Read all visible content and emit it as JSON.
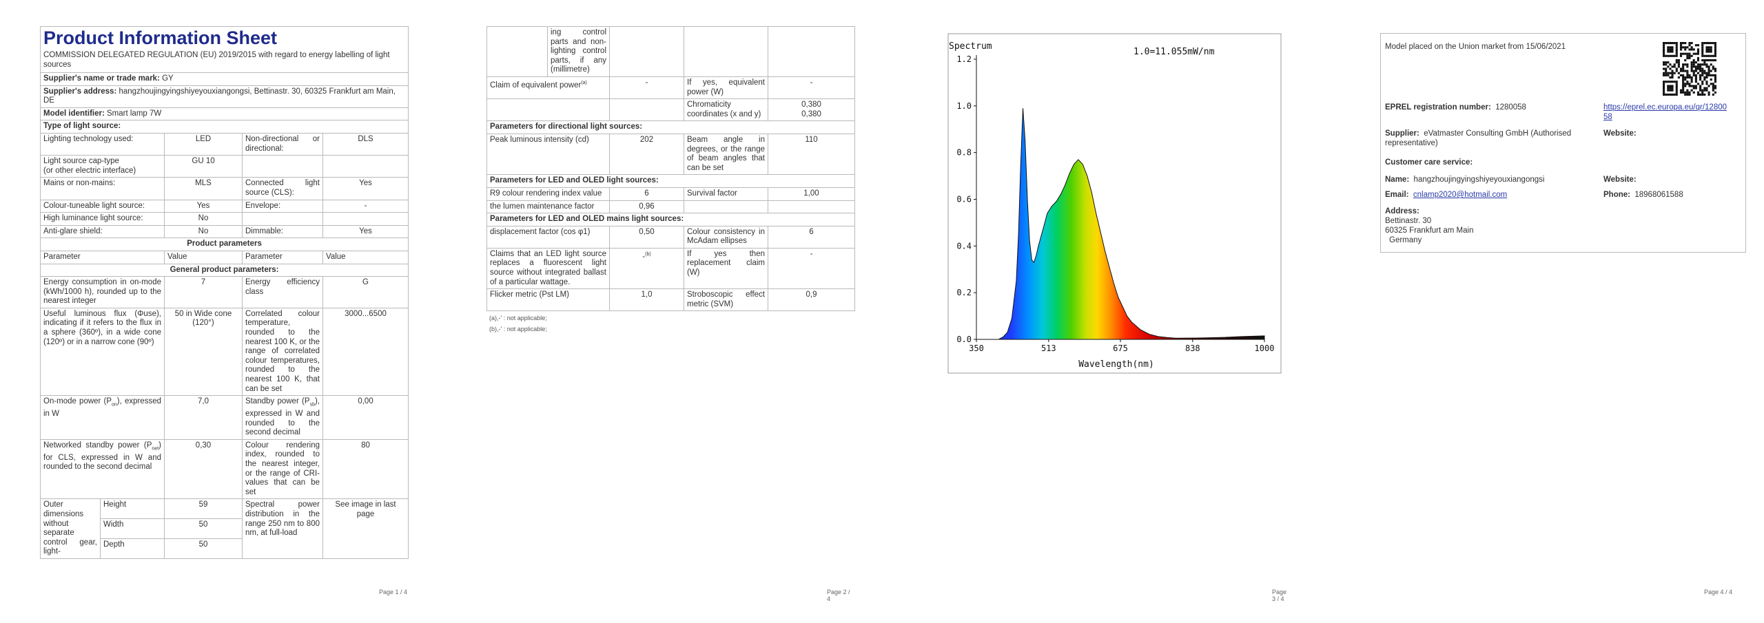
{
  "page1": {
    "title": "Product Information Sheet",
    "regulation": "COMMISSION DELEGATED REGULATION (EU) 2019/2015 with regard to energy labelling of light sources",
    "supplier_label": "Supplier's name or trade mark:",
    "supplier_value": "GY",
    "address_label": "Supplier's address:",
    "address_value": "hangzhoujingyingshiyeyouxiangongsi, Bettinastr. 30, 60325 Frankfurt am Main, DE",
    "model_label": "Model identifier:",
    "model_value": "Smart lamp 7W",
    "type_heading": "Type of light source:",
    "rows": {
      "tech_label": "Lighting technology used:",
      "tech_value": "LED",
      "directional_label": "Non-directional or directional:",
      "directional_value": "DLS",
      "cap_label": "Light source cap-type",
      "cap_label2": "(or other electric interface)",
      "cap_value": "GU 10",
      "mains_label": "Mains or non-mains:",
      "mains_value": "MLS",
      "connected_label": "Connected light source (CLS):",
      "connected_value": "Yes",
      "tuneable_label": "Colour-tuneable light source:",
      "tuneable_value": "Yes",
      "envelope_label": "Envelope:",
      "envelope_value": "-",
      "highlum_label": "High luminance light source:",
      "highlum_value": "No",
      "antiglare_label": "Anti-glare shield:",
      "antiglare_value": "No",
      "dimmable_label": "Dimmable:",
      "dimmable_value": "Yes"
    },
    "product_params_heading": "Product parameters",
    "col_parameter": "Parameter",
    "col_value": "Value",
    "general_heading": "General product parameters:",
    "energy_label": "Energy consumption in on-mode (kWh/1000 h), rounded up to the nearest integer",
    "energy_value": "7",
    "eff_label": "Energy efficiency class",
    "eff_value": "G",
    "flux_label": "Useful luminous flux (Φuse), indicating if it refers to the flux in a sphere (360º), in a wide cone (120º) or in a narrow cone (90º)",
    "flux_value": "50 in Wide cone (120°)",
    "cct_label": "Correlated colour temperature, rounded to the nearest 100 K, or the range of correlated colour temperatures, rounded to the nearest 100 K, that can be set",
    "cct_value": "3000...6500",
    "onmode_label_a": "On-mode power (P",
    "onmode_sub": "on",
    "onmode_label_b": "), expressed in W",
    "onmode_value": "7,0",
    "standby_label_a": "Standby power (P",
    "standby_sub": "sb",
    "standby_label_b": "), expressed in W and rounded to the second decimal",
    "standby_value": "0,00",
    "net_label_a": "Networked standby power (P",
    "net_sub": "net",
    "net_label_b": ") for CLS, expressed in W and rounded to the second decimal",
    "net_value": "0,30",
    "cri_label": "Colour rendering index, rounded to the nearest integer, or the range of CRI-values that can be set",
    "cri_value": "80",
    "outer_label": "Outer dimensions without separate control gear, light-",
    "height_label": "Height",
    "height_value": "59",
    "width_label": "Width",
    "width_value": "50",
    "depth_label": "Depth",
    "depth_value": "50",
    "spd_label": "Spectral power distribution in the range 250 nm to 800 nm, at full-load",
    "spd_value": "See image in last page",
    "page_number": "Page 1 / 4"
  },
  "page2": {
    "cont_label": "ing control parts and non-lighting control parts, if any (millimetre)",
    "claim_label": "Claim of equivalent power",
    "claim_sup": "(a)",
    "claim_value": "-",
    "equiv_label": "If yes, equivalent power (W)",
    "equiv_value": "-",
    "chroma_label": "Chromaticity coordinates (x and y)",
    "chroma_x": "0,380",
    "chroma_y": "0,380",
    "dir_heading": "Parameters for directional light sources:",
    "peak_label": "Peak luminous intensity (cd)",
    "peak_value": "202",
    "beam_label": "Beam angle in degrees, or the range of beam angles that can be set",
    "beam_value": "110",
    "led_heading": "Parameters for LED and OLED light sources:",
    "r9_label": "R9 colour rendering index value",
    "r9_value": "6",
    "survival_label": "Survival factor",
    "survival_value": "1,00",
    "lumen_label": "the lumen maintenance factor",
    "lumen_value": "0,96",
    "mains_heading": "Parameters for LED and OLED mains light sources:",
    "disp_label": "displacement factor (cos φ1)",
    "disp_value": "0,50",
    "consistency_label": "Colour consistency in McAdam ellipses",
    "consistency_value": "6",
    "claims_label": "Claims that an LED light source replaces a fluorescent light source without integrated ballast of a particular wattage.",
    "claims_value": "-",
    "claims_sup": "(b)",
    "replace_label": "If yes then replacement claim (W)",
    "replace_value": "-",
    "flicker_label": "Flicker metric (Pst LM)",
    "flicker_value": "1,0",
    "strobo_label": "Stroboscopic effect metric (SVM)",
    "strobo_value": "0,9",
    "note_a": "(a),-' : not applicable;",
    "note_b": "(b),-' : not applicable;",
    "page_number": "Page 2 / 4"
  },
  "page3": {
    "chart_title": "Spectrum",
    "scale_note": "1.0=11.055mW/nm",
    "xlabel": "Wavelength(nm)",
    "page_number": "Page 3 / 4"
  },
  "chart_data": {
    "type": "area",
    "title": "Spectrum",
    "xlabel": "Wavelength(nm)",
    "ylabel": "",
    "xlim": [
      350,
      1000
    ],
    "ylim": [
      0,
      1.2
    ],
    "x_ticks": [
      350,
      513,
      675,
      838,
      1000
    ],
    "y_ticks": [
      "0.0",
      "0.2",
      "0.4",
      "0.6",
      "0.8",
      "1.0",
      "1.2"
    ],
    "x": [
      350,
      400,
      410,
      420,
      430,
      440,
      445,
      450,
      455,
      460,
      465,
      470,
      475,
      480,
      485,
      490,
      500,
      510,
      520,
      530,
      540,
      550,
      560,
      570,
      580,
      590,
      600,
      610,
      620,
      630,
      640,
      650,
      660,
      670,
      680,
      690,
      700,
      720,
      740,
      760,
      780,
      800,
      850,
      900,
      950,
      1000
    ],
    "y": [
      0.0,
      0.0,
      0.01,
      0.03,
      0.09,
      0.25,
      0.45,
      0.75,
      0.99,
      0.85,
      0.6,
      0.42,
      0.34,
      0.33,
      0.36,
      0.4,
      0.47,
      0.54,
      0.57,
      0.59,
      0.62,
      0.66,
      0.71,
      0.75,
      0.77,
      0.75,
      0.7,
      0.63,
      0.54,
      0.46,
      0.38,
      0.31,
      0.24,
      0.18,
      0.14,
      0.1,
      0.075,
      0.042,
      0.022,
      0.012,
      0.008,
      0.005,
      0.006,
      0.008,
      0.012,
      0.015
    ],
    "grid": false,
    "legend": "none"
  },
  "page4": {
    "market_text": "Model placed on the Union market from 15/06/2021",
    "eprel_label": "EPREL registration number:",
    "eprel_value": "1280058",
    "eprel_link": "https://eprel.ec.europa.eu/qr/1280058",
    "supplier_label": "Supplier:",
    "supplier_value": "eVatmaster Consulting GmbH (Authorised representative)",
    "website_label": "Website:",
    "care_label": "Customer care service:",
    "name_label": "Name:",
    "name_value": "hangzhoujingyingshiyeyouxiangongsi",
    "website_label2": "Website:",
    "email_label": "Email:",
    "email_value": "cnlamp2020@hotmail.com",
    "phone_label": "Phone:",
    "phone_value": "18968061588",
    "address_label": "Address:",
    "address_line1": "Bettinastr. 30",
    "address_line2": "60325 Frankfurt am Main",
    "address_line3": "Germany",
    "page_number": "Page 4 / 4"
  }
}
